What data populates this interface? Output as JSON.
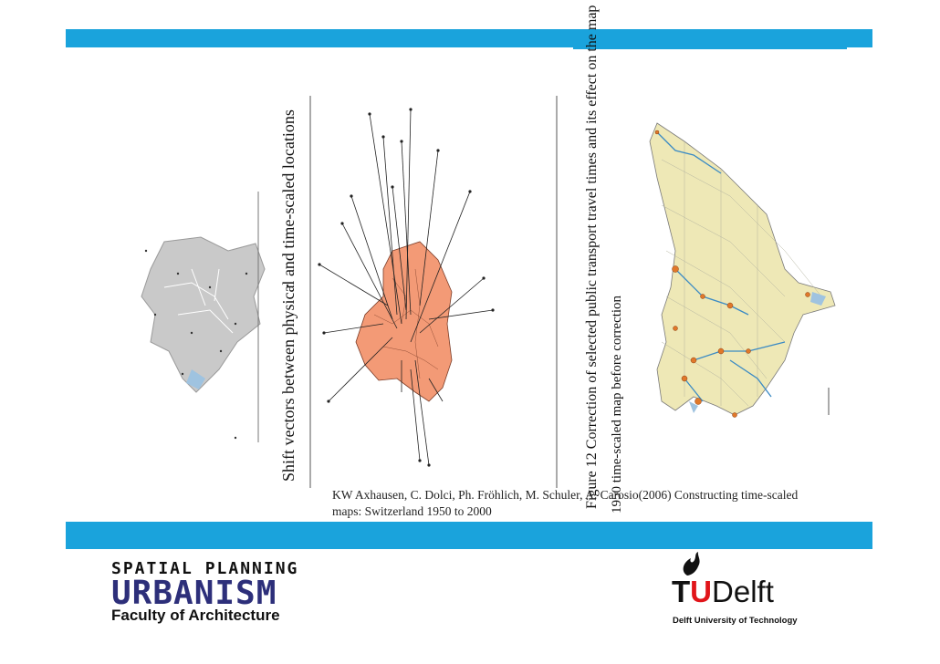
{
  "header": {
    "bar_color": "#1aa3dc"
  },
  "figure": {
    "label_rotated_1": "Shift vectors between physical and time-scaled locations",
    "label_rotated_2": "Figure 12   Correction of selected public transport travel times and its effect on the map",
    "label_rotated_3": "1950 time-scaled map before correction",
    "caption_line1": "KW Axhausen, C. Dolci, Ph. Fröhlich, M. Schuler, A. Carosio(2006) Constructing time-scaled",
    "caption_line2": "maps: Switzerland 1950 to 2000"
  },
  "footer": {
    "program_label": "SPATIAL PLANNING",
    "program_name": "URBANISM",
    "faculty": "Faculty of Architecture",
    "university_logo_prefix": "T",
    "university_logo_accent": "U",
    "university_logo_rest": "Delft",
    "university_subtitle": "Delft University of Technology"
  },
  "colors": {
    "accent_blue": "#1aa3dc",
    "tu_red": "#e1151a",
    "urbanism_blue": "#2d2f7a"
  }
}
